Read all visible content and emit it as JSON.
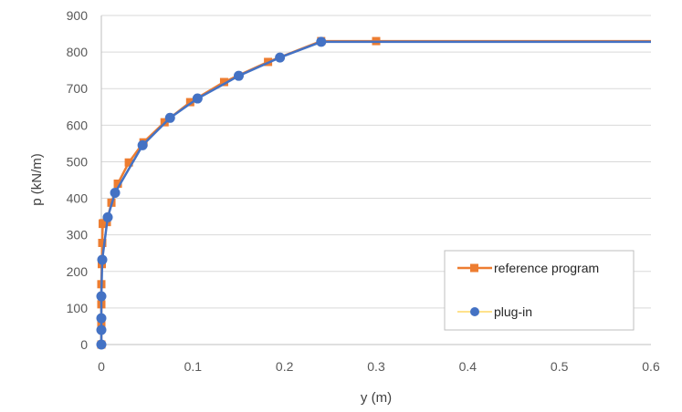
{
  "chart_data": {
    "type": "scatter",
    "title": "",
    "xlabel": "y (m)",
    "ylabel": "p (kN/m)",
    "xlim": [
      0,
      0.6
    ],
    "ylim": [
      0,
      900
    ],
    "xticks": [
      "0",
      "0.1",
      "0.2",
      "0.3",
      "0.4",
      "0.5",
      "0.6"
    ],
    "yticks": [
      "0",
      "100",
      "200",
      "300",
      "400",
      "500",
      "600",
      "700",
      "800",
      "900"
    ],
    "grid": "horizontal",
    "legend_position": "bottom-right",
    "series": [
      {
        "name": "reference program",
        "color": "#ED7D31",
        "marker": "square",
        "line": true,
        "x": [
          0,
          0,
          0,
          0,
          0.0005,
          0.001,
          0.0015,
          0.002,
          0.006,
          0.011,
          0.018,
          0.03,
          0.046,
          0.069,
          0.097,
          0.134,
          0.182,
          0.24,
          0.3,
          0.6
        ],
        "y": [
          0,
          55,
          110,
          165,
          220,
          278,
          330,
          332,
          335,
          388,
          440,
          498,
          553,
          608,
          663,
          718,
          773,
          830,
          830,
          830
        ]
      },
      {
        "name": "plug-in",
        "color": "#4472C4",
        "marker": "circle",
        "line": true,
        "x": [
          0,
          0,
          0,
          0,
          0.001,
          0.007,
          0.015,
          0.045,
          0.075,
          0.105,
          0.15,
          0.195,
          0.24,
          0.6
        ],
        "y": [
          0,
          40,
          72,
          132,
          232,
          348,
          415,
          545,
          620,
          673,
          735,
          785,
          828,
          828
        ]
      }
    ],
    "legend": {
      "items": [
        "reference program",
        "plug-in"
      ],
      "line_colors": [
        "#ED7D31",
        "#FFD966"
      ]
    }
  }
}
